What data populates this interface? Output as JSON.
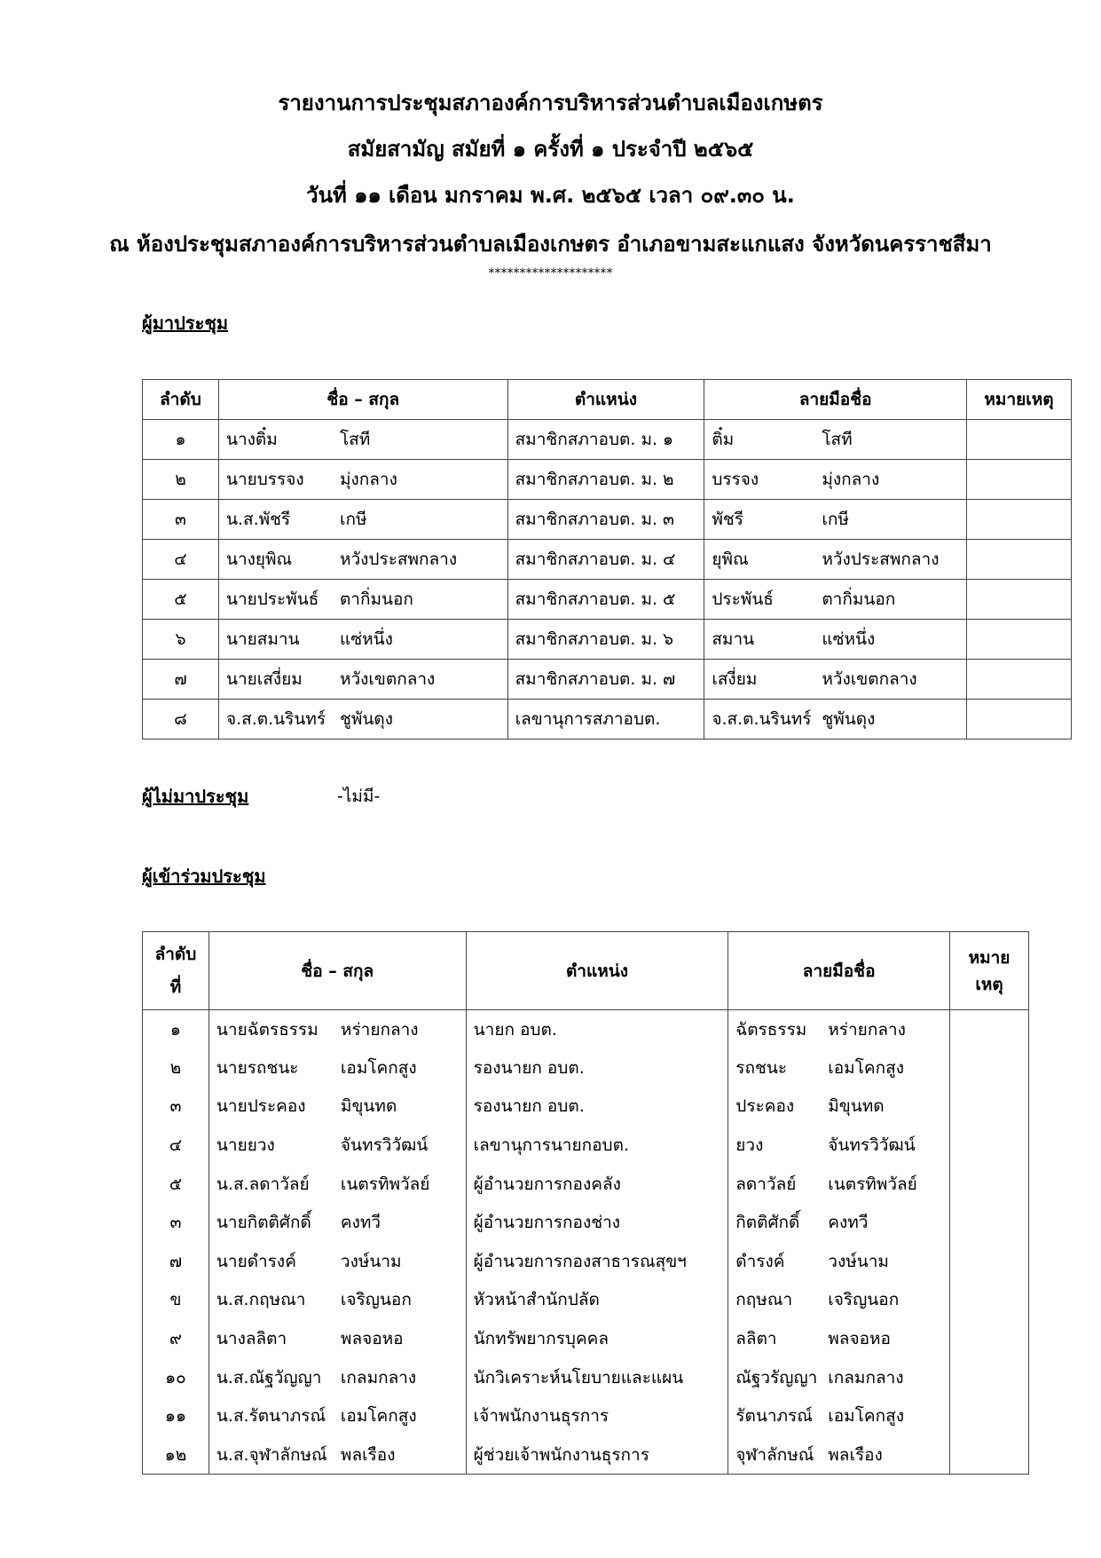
{
  "header": {
    "line1": "รายงานการประชุมสภาองค์การบริหารส่วนตำบลเมืองเกษตร",
    "line2": "สมัยสามัญ  สมัยที่ ๑  ครั้งที่ ๑ ประจำปี  ๒๕๖๕",
    "line3": "วันที่ ๑๑  เดือน มกราคม พ.ศ. ๒๕๖๕  เวลา ๐๙.๓๐ น.",
    "line4": "ณ ห้องประชุมสภาองค์การบริหารส่วนตำบลเมืองเกษตร  อำเภอขามสะแกแสง จังหวัดนครราชสีมา",
    "stars": "********************"
  },
  "attendees": {
    "heading": "ผู้มาประชุม",
    "columns": [
      "ลำดับ",
      "ชื่อ – สกุล",
      "ตำแหน่ง",
      "ลายมือชื่อ",
      "หมายเหตุ"
    ],
    "rows": [
      {
        "no": "๑",
        "first": "นางติ๋ม",
        "last": "โสที",
        "position": "สมาชิกสภาอบต. ม. ๑",
        "sig_first": "ติ๋ม",
        "sig_last": "โสที"
      },
      {
        "no": "๒",
        "first": "นายบรรจง",
        "last": "มุ่งกลาง",
        "position": "สมาชิกสภาอบต. ม. ๒",
        "sig_first": "บรรจง",
        "sig_last": "มุ่งกลาง"
      },
      {
        "no": "๓",
        "first": "น.ส.พัชรี",
        "last": "เกษี",
        "position": "สมาชิกสภาอบต. ม. ๓",
        "sig_first": "พัชรี",
        "sig_last": "เกษี"
      },
      {
        "no": "๔",
        "first": "นางยุพิณ",
        "last": "หวังประสพกลาง",
        "position": "สมาชิกสภาอบต. ม. ๔",
        "sig_first": "ยุพิณ",
        "sig_last": "หวังประสพกลาง"
      },
      {
        "no": "๕",
        "first": "นายประพันธ์",
        "last": "ตากิ่มนอก",
        "position": "สมาชิกสภาอบต. ม. ๕",
        "sig_first": "ประพันธ์",
        "sig_last": "ตากิ่มนอก"
      },
      {
        "no": "๖",
        "first": "นายสมาน",
        "last": "แซ่หนึ่ง",
        "position": "สมาชิกสภาอบต. ม. ๖",
        "sig_first": "สมาน",
        "sig_last": "แซ่หนึ่ง"
      },
      {
        "no": "๗",
        "first": "นายเสงี่ยม",
        "last": "หวังเขตกลาง",
        "position": "สมาชิกสภาอบต. ม. ๗",
        "sig_first": "เสงี่ยม",
        "sig_last": "หวังเขตกลาง"
      },
      {
        "no": "๘",
        "first": "จ.ส.ต.นรินทร์",
        "last": "ชูพันดุง",
        "position": "เลขานุการสภาอบต.",
        "sig_first": "จ.ส.ต.นรินทร์",
        "sig_last": "ชูพันดุง"
      }
    ]
  },
  "absent": {
    "heading": "ผู้ไม่มาประชุม",
    "value": "-ไม่มี-"
  },
  "participants": {
    "heading": "ผู้เข้าร่วมประชุม",
    "columns": [
      "ลำดับที่",
      "ชื่อ – สกุล",
      "ตำแหน่ง",
      "ลายมือชื่อ",
      "หมายเหตุ"
    ],
    "col_no_line1": "ลำดับ",
    "col_no_line2": "ที่",
    "col_note_line1": "หมาย",
    "col_note_line2": "เหตุ",
    "rows": [
      {
        "no": "๑",
        "first": "นายฉัตรธรรม",
        "last": "หร่ายกลาง",
        "position": "นายก อบต.",
        "sig_first": "ฉัตรธรรม",
        "sig_last": "หร่ายกลาง"
      },
      {
        "no": "๒",
        "first": "นายรถชนะ",
        "last": "เอมโคกสูง",
        "position": "รองนายก อบต.",
        "sig_first": "รถชนะ",
        "sig_last": "เอมโคกสูง"
      },
      {
        "no": "๓",
        "first": "นายประคอง",
        "last": "มิขุนทด",
        "position": "รองนายก อบต.",
        "sig_first": "ประคอง",
        "sig_last": "มิขุนทด"
      },
      {
        "no": "๔",
        "first": "นายยวง",
        "last": "จันทรวิวัฒน์",
        "position": "เลขานุการนายกอบต.",
        "sig_first": "ยวง",
        "sig_last": "จันทรวิวัฒน์"
      },
      {
        "no": "๕",
        "first": "น.ส.ลดาวัลย์",
        "last": "เนตรทิพวัลย์",
        "position": "ผู้อำนวยการกองคลัง",
        "sig_first": "ลดาวัลย์",
        "sig_last": "เนตรทิพวัลย์"
      },
      {
        "no": "๓",
        "first": "นายกิตติศักดิ์",
        "last": "คงทวี",
        "position": "ผู้อำนวยการกองช่าง",
        "sig_first": "กิตติศักดิ์",
        "sig_last": "คงทวี"
      },
      {
        "no": "๗",
        "first": "นายดำรงค์",
        "last": "วงษ์นาม",
        "position": "ผู้อำนวยการกองสาธารณสุขฯ",
        "sig_first": "ดำรงค์",
        "sig_last": "วงษ์นาม"
      },
      {
        "no": "ข",
        "first": "น.ส.กฤษณา",
        "last": "เจริญนอก",
        "position": "หัวหน้าสำนักปลัด",
        "sig_first": "กฤษณา",
        "sig_last": "เจริญนอก"
      },
      {
        "no": "๙",
        "first": "นางลลิตา",
        "last": "พลจอหอ",
        "position": "นักทรัพยากรบุคคล",
        "sig_first": "ลลิตา",
        "sig_last": "พลจอหอ"
      },
      {
        "no": "๑๐",
        "first": "น.ส.ณัฐวัญญา",
        "last": "เกลมกลาง",
        "position": "นักวิเคราะห์นโยบายและแผน",
        "sig_first": "ณัฐวรัญญา",
        "sig_last": "เกลมกลาง"
      },
      {
        "no": "๑๑",
        "first": "น.ส.รัตนาภรณ์",
        "last": "เอมโคกสูง",
        "position": "เจ้าพนักงานธุรการ",
        "sig_first": "รัตนาภรณ์",
        "sig_last": "เอมโคกสูง"
      },
      {
        "no": "๑๒",
        "first": "น.ส.จุฬาลักษณ์",
        "last": "พลเรือง",
        "position": "ผู้ช่วยเจ้าพนักงานธุรการ",
        "sig_first": "จุฬาลักษณ์",
        "sig_last": "พลเรือง"
      }
    ]
  }
}
